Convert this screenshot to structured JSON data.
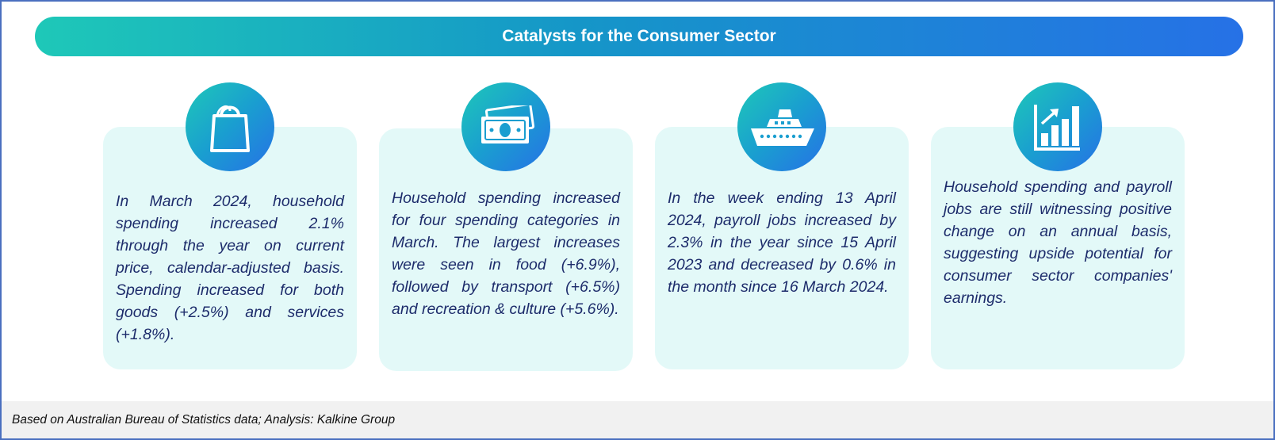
{
  "header": {
    "title": "Catalysts for the Consumer Sector"
  },
  "cards": [
    {
      "icon": "shopping-bag-icon",
      "text": "In March 2024, household spending increased 2.1% through the year on current price, calendar-adjusted basis. Spending increased for both goods (+2.5%) and services (+1.8%)."
    },
    {
      "icon": "banknotes-icon",
      "text": "Household spending increased for four spending categories in March. The largest increases were seen in food (+6.9%), followed by transport (+6.5%) and recreation & culture (+5.6%)."
    },
    {
      "icon": "cruise-ship-icon",
      "text": "In the week ending 13 April 2024, payroll jobs increased by 2.3% in the year since 15 April 2023 and decreased by 0.6% in the month since 16 March 2024."
    },
    {
      "icon": "growth-chart-icon",
      "text": "Household spending and payroll jobs are still witnessing positive change on an annual basis, suggesting upside potential for consumer sector companies' earnings."
    }
  ],
  "footer": {
    "source": "Based on Australian Bureau of Statistics data; Analysis: Kalkine Group"
  },
  "colors": {
    "banner_start": "#1ec8b8",
    "banner_end": "#2671e6",
    "card_background": "#e3f9f8",
    "text": "#1d2c6b"
  }
}
